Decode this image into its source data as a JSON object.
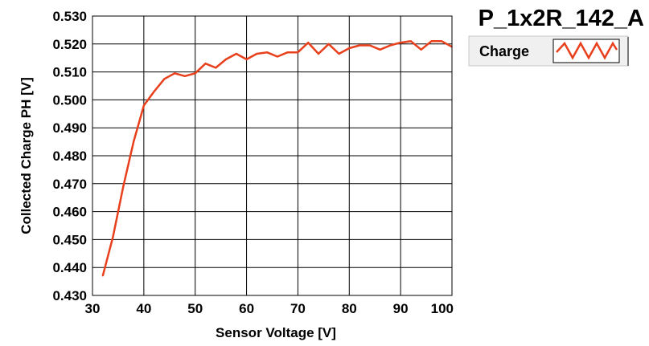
{
  "chart_data": {
    "type": "line",
    "title": "P_1x2R_142_A",
    "xlabel": "Sensor Voltage [V]",
    "ylabel": "Collected Charge PH [V]",
    "xlim": [
      30,
      100
    ],
    "ylim": [
      0.43,
      0.53
    ],
    "xticks": [
      30,
      40,
      50,
      60,
      70,
      80,
      90,
      100
    ],
    "yticks": [
      0.43,
      0.44,
      0.45,
      0.46,
      0.47,
      0.48,
      0.49,
      0.5,
      0.51,
      0.52,
      0.53
    ],
    "ytick_labels": [
      "0.430",
      "0.440",
      "0.450",
      "0.460",
      "0.470",
      "0.480",
      "0.490",
      "0.500",
      "0.510",
      "0.520",
      "0.530"
    ],
    "xtick_labels": [
      "30",
      "40",
      "50",
      "60",
      "70",
      "80",
      "90",
      "100"
    ],
    "grid": true,
    "legend_position": "top-right",
    "series": [
      {
        "name": "Charge",
        "color": "#e8401c",
        "x": [
          32,
          34,
          36,
          38,
          40,
          42,
          44,
          46,
          48,
          50,
          52,
          54,
          56,
          58,
          60,
          62,
          64,
          66,
          68,
          70,
          72,
          74,
          76,
          78,
          80,
          82,
          84,
          86,
          88,
          90,
          92,
          94,
          96,
          98,
          100
        ],
        "y": [
          0.437,
          0.451,
          0.469,
          0.485,
          0.498,
          0.503,
          0.5075,
          0.5095,
          0.5085,
          0.5095,
          0.513,
          0.5115,
          0.5145,
          0.5165,
          0.5145,
          0.5165,
          0.517,
          0.5155,
          0.517,
          0.517,
          0.5205,
          0.5165,
          0.52,
          0.5165,
          0.5185,
          0.5195,
          0.5195,
          0.518,
          0.5195,
          0.5205,
          0.521,
          0.518,
          0.521,
          0.521,
          0.519
        ]
      }
    ]
  }
}
